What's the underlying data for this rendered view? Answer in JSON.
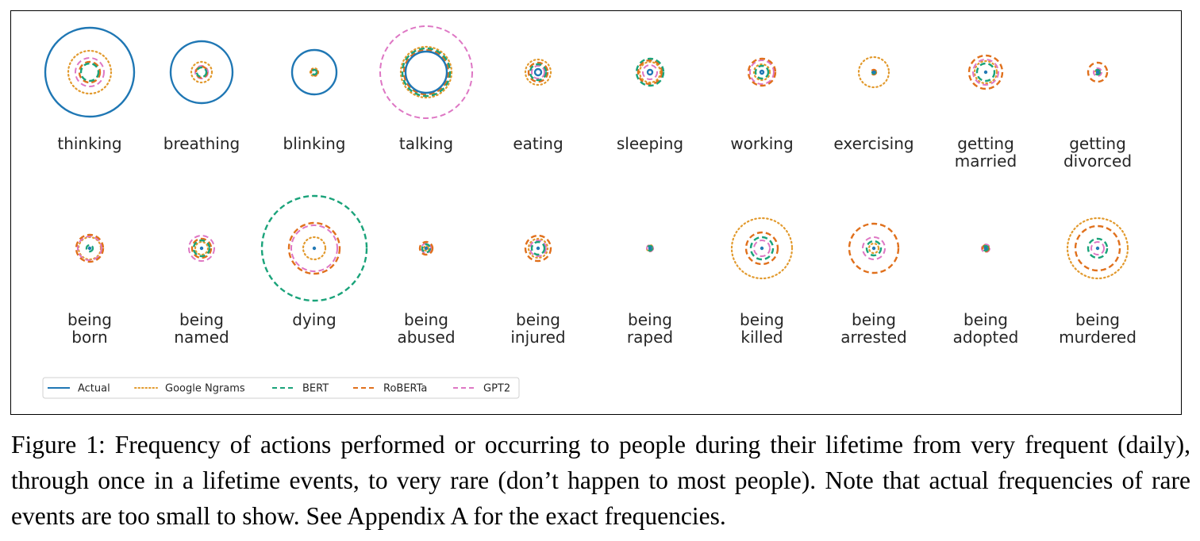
{
  "chart_data": {
    "type": "bubble-grid",
    "series": [
      {
        "name": "Actual",
        "color": "#1f77b4",
        "dash": "solid"
      },
      {
        "name": "Google Ngrams",
        "color": "#ff7f0e",
        "dash": "dotted"
      },
      {
        "name": "BERT",
        "color": "#2ca02c",
        "dash": "dashed"
      },
      {
        "name": "RoBERTa",
        "color": "#d62728",
        "dash": "dashed"
      },
      {
        "name": "GPT2",
        "color": "#e377c2",
        "dash": "dashed"
      }
    ],
    "series_colors": {
      "Actual": "#1f77b4",
      "Google Ngrams": "#e29a2e",
      "BERT": "#1aa37a",
      "RoBERTa": "#e0701c",
      "GPT2": "#de77c4"
    },
    "legend_placement": "bottom-left",
    "value_note": "relative circle radius per series",
    "actions": [
      {
        "label": [
          "thinking"
        ],
        "values": {
          "Actual": 56,
          "Google Ngrams": 27,
          "BERT": 11,
          "RoBERTa": 13,
          "GPT2": 18
        }
      },
      {
        "label": [
          "breathing"
        ],
        "values": {
          "Actual": 39,
          "Google Ngrams": 13,
          "BERT": 6,
          "RoBERTa": 7,
          "GPT2": 8
        }
      },
      {
        "label": [
          "blinking"
        ],
        "values": {
          "Actual": 28,
          "Google Ngrams": 5,
          "BERT": 3,
          "RoBERTa": 4,
          "GPT2": 4
        }
      },
      {
        "label": [
          "talking"
        ],
        "values": {
          "Actual": 26,
          "Google Ngrams": 32,
          "BERT": 30,
          "RoBERTa": 28,
          "GPT2": 58
        }
      },
      {
        "label": [
          "eating"
        ],
        "values": {
          "Actual": 4,
          "Google Ngrams": 16,
          "BERT": 10,
          "RoBERTa": 12,
          "GPT2": 8
        }
      },
      {
        "label": [
          "sleeping"
        ],
        "values": {
          "Actual": 3,
          "Google Ngrams": 13,
          "BERT": 17,
          "RoBERTa": 15,
          "GPT2": 9
        }
      },
      {
        "label": [
          "working"
        ],
        "values": {
          "Actual": 2,
          "Google Ngrams": 10,
          "BERT": 8,
          "RoBERTa": 17,
          "GPT2": 15
        }
      },
      {
        "label": [
          "exercising"
        ],
        "values": {
          "Actual": 1,
          "Google Ngrams": 19,
          "BERT": 2,
          "RoBERTa": 3,
          "GPT2": 3
        }
      },
      {
        "label": [
          "getting",
          "married"
        ],
        "values": {
          "Actual": 1,
          "Google Ngrams": 14,
          "BERT": 11,
          "RoBERTa": 21,
          "GPT2": 16
        }
      },
      {
        "label": [
          "getting",
          "divorced"
        ],
        "values": {
          "Actual": 1,
          "Google Ngrams": 3,
          "BERT": 3,
          "RoBERTa": 12,
          "GPT2": 5
        }
      },
      {
        "label": [
          "being",
          "born"
        ],
        "values": {
          "Actual": 1,
          "Google Ngrams": 14,
          "BERT": 4,
          "RoBERTa": 17,
          "GPT2": 15
        }
      },
      {
        "label": [
          "being",
          "named"
        ],
        "values": {
          "Actual": 1,
          "Google Ngrams": 8,
          "BERT": 10,
          "RoBERTa": 12,
          "GPT2": 16
        }
      },
      {
        "label": [
          "dying"
        ],
        "values": {
          "Actual": 1,
          "Google Ngrams": 14,
          "BERT": 66,
          "RoBERTa": 32,
          "GPT2": 29
        }
      },
      {
        "label": [
          "being",
          "abused"
        ],
        "values": {
          "Actual": 1,
          "Google Ngrams": 3,
          "BERT": 5,
          "RoBERTa": 8,
          "GPT2": 6
        }
      },
      {
        "label": [
          "being",
          "injured"
        ],
        "values": {
          "Actual": 1,
          "Google Ngrams": 12,
          "BERT": 8,
          "RoBERTa": 16,
          "GPT2": 10
        }
      },
      {
        "label": [
          "being",
          "raped"
        ],
        "values": {
          "Actual": 1,
          "Google Ngrams": 4,
          "BERT": 3,
          "RoBERTa": 3,
          "GPT2": 4
        }
      },
      {
        "label": [
          "being",
          "killed"
        ],
        "values": {
          "Actual": 1,
          "Google Ngrams": 38,
          "BERT": 14,
          "RoBERTa": 20,
          "GPT2": 10
        }
      },
      {
        "label": [
          "being",
          "arrested"
        ],
        "values": {
          "Actual": 1,
          "Google Ngrams": 6,
          "BERT": 9,
          "RoBERTa": 31,
          "GPT2": 14
        }
      },
      {
        "label": [
          "being",
          "adopted"
        ],
        "values": {
          "Actual": 1,
          "Google Ngrams": 3,
          "BERT": 3,
          "RoBERTa": 4,
          "GPT2": 5
        }
      },
      {
        "label": [
          "being",
          "murdered"
        ],
        "values": {
          "Actual": 1,
          "Google Ngrams": 38,
          "BERT": 12,
          "RoBERTa": 28,
          "GPT2": 8
        }
      }
    ]
  },
  "legend": {
    "items": [
      "Actual",
      "Google Ngrams",
      "BERT",
      "RoBERTa",
      "GPT2"
    ]
  },
  "caption": {
    "text": "Figure 1: Frequency of actions performed or occurring to people during their lifetime from very frequent (daily), through once in a lifetime events, to very rare (don’t happen to most people). Note that actual frequencies of rare events are too small to show. See Appendix A for the exact frequencies."
  }
}
